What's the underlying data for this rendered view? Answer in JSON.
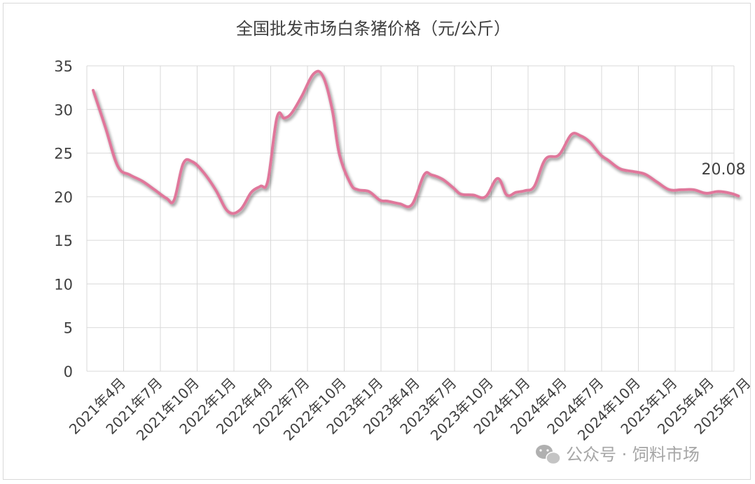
{
  "chart_data": {
    "type": "line",
    "title": "全国批发市场白条猪价格（元/公斤）",
    "xlabel": "",
    "ylabel": "",
    "ylim": [
      0,
      35
    ],
    "yticks": [
      0,
      5,
      10,
      15,
      20,
      25,
      30,
      35
    ],
    "grid": true,
    "legend": "none",
    "line_color": "#e0779b",
    "categories": [
      "2021年4月",
      "2021年7月",
      "2021年10月",
      "2022年1月",
      "2022年4月",
      "2022年7月",
      "2022年10月",
      "2023年1月",
      "2023年4月",
      "2023年7月",
      "2023年10月",
      "2024年1月",
      "2024年4月",
      "2024年7月",
      "2024年10月",
      "2025年1月",
      "2025年4月",
      "2025年7月"
    ],
    "x": [
      0,
      0.33,
      0.67,
      1.0,
      1.33,
      1.67,
      2.0,
      2.2,
      2.45,
      2.7,
      3.0,
      3.33,
      3.67,
      4.0,
      4.3,
      4.55,
      4.75,
      5.0,
      5.2,
      5.4,
      5.67,
      6.0,
      6.25,
      6.5,
      6.7,
      7.0,
      7.2,
      7.5,
      7.8,
      8.0,
      8.33,
      8.67,
      9.0,
      9.2,
      9.5,
      9.8,
      10.0,
      10.33,
      10.67,
      11.0,
      11.25,
      11.5,
      11.75,
      12.0,
      12.3,
      12.67,
      13.0,
      13.25,
      13.5,
      13.8,
      14.0,
      14.33,
      14.67,
      15.0,
      15.33,
      15.67,
      16.0,
      16.33,
      16.67,
      17.0,
      17.33,
      17.55
    ],
    "values": [
      32.2,
      28.0,
      23.5,
      22.5,
      21.8,
      20.8,
      19.8,
      19.6,
      23.8,
      24.0,
      22.8,
      20.8,
      18.3,
      18.5,
      20.5,
      21.2,
      21.8,
      29.1,
      29.0,
      29.6,
      31.5,
      34.1,
      33.8,
      30.0,
      24.8,
      21.5,
      20.8,
      20.6,
      19.6,
      19.5,
      19.2,
      19.1,
      22.5,
      22.5,
      22.0,
      21.0,
      20.3,
      20.2,
      20.0,
      22.1,
      20.2,
      20.5,
      20.7,
      21.2,
      24.3,
      24.8,
      27.1,
      27.0,
      26.3,
      24.8,
      24.2,
      23.2,
      22.9,
      22.6,
      21.7,
      20.8,
      20.8,
      20.8,
      20.4,
      20.6,
      20.4,
      20.08
    ],
    "data_label": "20.08",
    "watermark": "公众号 · 饲料市场"
  }
}
